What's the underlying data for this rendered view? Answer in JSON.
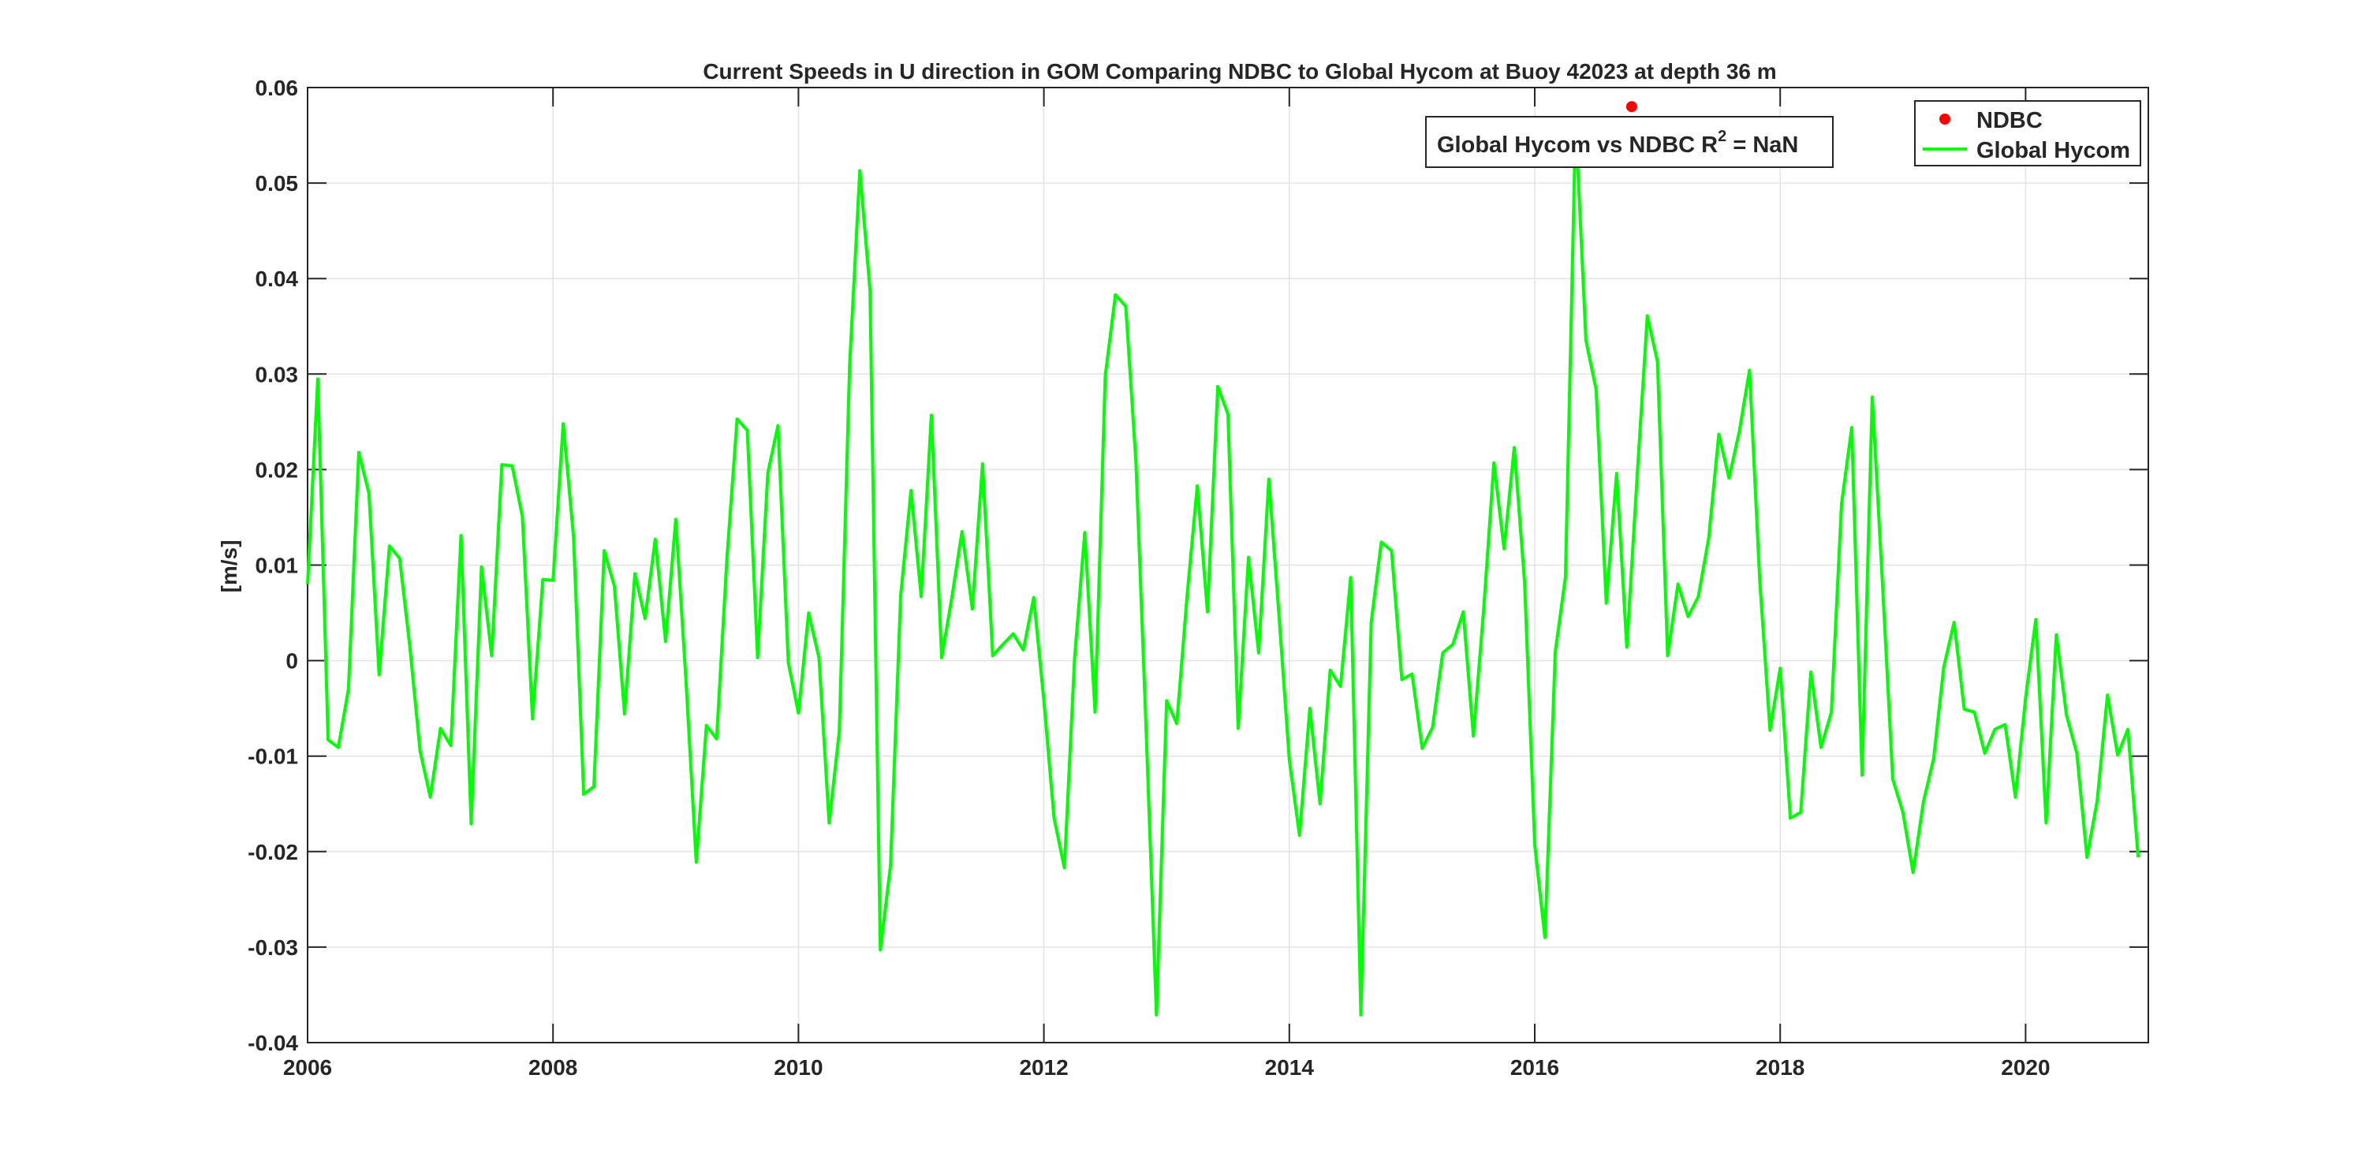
{
  "chart_data": {
    "type": "line",
    "title": "Current Speeds in U direction in GOM Comparing NDBC to Global Hycom at Buoy  42023  at depth  36 m",
    "xlabel": "",
    "ylabel": "[m/s]",
    "xlim": [
      2006,
      2021
    ],
    "ylim": [
      -0.04,
      0.06
    ],
    "x_ticks": [
      2006,
      2008,
      2010,
      2012,
      2014,
      2016,
      2018,
      2020
    ],
    "x_tick_labels": [
      "2006",
      "2008",
      "2010",
      "2012",
      "2014",
      "2016",
      "2018",
      "2020"
    ],
    "y_ticks": [
      -0.04,
      -0.03,
      -0.02,
      -0.01,
      0,
      0.01,
      0.02,
      0.03,
      0.04,
      0.05,
      0.06
    ],
    "y_tick_labels": [
      "-0.04",
      "-0.03",
      "-0.02",
      "-0.01",
      "0",
      "0.01",
      "0.02",
      "0.03",
      "0.04",
      "0.05",
      "0.06"
    ],
    "grid": true,
    "legend_position": "top-right",
    "annotation": {
      "prefix": "Global Hycom vs NDBC R",
      "superscript": "2",
      "suffix": " = NaN"
    },
    "series": [
      {
        "name": "NDBC",
        "style": "scatter",
        "color": "#ff0000",
        "x": [
          2016.79
        ],
        "y": [
          0.058
        ]
      },
      {
        "name": "Global Hycom",
        "style": "line",
        "color": "#00ff00",
        "x": [
          2006.0,
          2006.083,
          2006.167,
          2006.25,
          2006.333,
          2006.417,
          2006.5,
          2006.583,
          2006.667,
          2006.75,
          2006.833,
          2006.917,
          2007.0,
          2007.083,
          2007.167,
          2007.25,
          2007.333,
          2007.417,
          2007.5,
          2007.583,
          2007.667,
          2007.75,
          2007.833,
          2007.917,
          2008.0,
          2008.083,
          2008.167,
          2008.25,
          2008.333,
          2008.417,
          2008.5,
          2008.583,
          2008.667,
          2008.75,
          2008.833,
          2008.917,
          2009.0,
          2009.083,
          2009.167,
          2009.25,
          2009.333,
          2009.417,
          2009.5,
          2009.583,
          2009.667,
          2009.75,
          2009.833,
          2009.917,
          2010.0,
          2010.083,
          2010.167,
          2010.25,
          2010.333,
          2010.417,
          2010.5,
          2010.583,
          2010.667,
          2010.75,
          2010.833,
          2010.917,
          2011.0,
          2011.083,
          2011.167,
          2011.25,
          2011.333,
          2011.417,
          2011.5,
          2011.583,
          2011.667,
          2011.75,
          2011.833,
          2011.917,
          2012.0,
          2012.083,
          2012.167,
          2012.25,
          2012.333,
          2012.417,
          2012.5,
          2012.583,
          2012.667,
          2012.75,
          2012.833,
          2012.917,
          2013.0,
          2013.083,
          2013.167,
          2013.25,
          2013.333,
          2013.417,
          2013.5,
          2013.583,
          2013.667,
          2013.75,
          2013.833,
          2013.917,
          2014.0,
          2014.083,
          2014.167,
          2014.25,
          2014.333,
          2014.417,
          2014.5,
          2014.583,
          2014.667,
          2014.75,
          2014.833,
          2014.917,
          2015.0,
          2015.083,
          2015.167,
          2015.25,
          2015.333,
          2015.417,
          2015.5,
          2015.583,
          2015.667,
          2015.75,
          2015.833,
          2015.917,
          2016.0,
          2016.083,
          2016.167,
          2016.25,
          2016.333,
          2016.417,
          2016.5,
          2016.583,
          2016.667,
          2016.75,
          2016.833,
          2016.917,
          2017.0,
          2017.083,
          2017.167,
          2017.25,
          2017.333,
          2017.417,
          2017.5,
          2017.583,
          2017.667,
          2017.75,
          2017.833,
          2017.917,
          2018.0,
          2018.083,
          2018.167,
          2018.25,
          2018.333,
          2018.417,
          2018.5,
          2018.583,
          2018.667,
          2018.75,
          2018.833,
          2018.917,
          2019.0,
          2019.083,
          2019.167,
          2019.25,
          2019.333,
          2019.417,
          2019.5,
          2019.583,
          2019.667,
          2019.75,
          2019.833,
          2019.917,
          2020.0,
          2020.083,
          2020.167,
          2020.25,
          2020.333,
          2020.417,
          2020.5,
          2020.583,
          2020.667,
          2020.75,
          2020.833,
          2020.917
        ],
        "y": [
          0.008,
          0.0295,
          -0.0083,
          -0.0091,
          -0.003,
          0.0218,
          0.0175,
          -0.0015,
          0.012,
          0.0107,
          0.0015,
          -0.0095,
          -0.0143,
          -0.0071,
          -0.0089,
          0.0131,
          -0.0171,
          0.0098,
          0.0005,
          0.0205,
          0.0204,
          0.0151,
          -0.0061,
          0.0085,
          0.0084,
          0.0248,
          0.013,
          -0.014,
          -0.0132,
          0.0115,
          0.0078,
          -0.0056,
          0.0091,
          0.0044,
          0.0127,
          0.002,
          0.0148,
          -0.002,
          -0.0211,
          -0.0068,
          -0.0082,
          0.0107,
          0.0253,
          0.0241,
          0.0003,
          0.0196,
          0.0246,
          -0.0002,
          -0.0055,
          0.005,
          0.0003,
          -0.017,
          -0.0074,
          0.031,
          0.0513,
          0.0388,
          -0.0303,
          -0.0215,
          0.0068,
          0.0178,
          0.0067,
          0.0257,
          0.0003,
          0.0066,
          0.0135,
          0.0054,
          0.0206,
          0.0005,
          0.0017,
          0.0028,
          0.0011,
          0.0066,
          -0.0042,
          -0.0165,
          -0.0217,
          0.0002,
          0.0134,
          -0.0054,
          0.0298,
          0.0383,
          0.0371,
          0.0208,
          -0.0072,
          -0.0371,
          -0.0042,
          -0.0066,
          0.0068,
          0.0183,
          0.0051,
          0.0287,
          0.0258,
          -0.0071,
          0.0108,
          0.0008,
          0.019,
          0.0045,
          -0.0104,
          -0.0183,
          -0.005,
          -0.015,
          -0.001,
          -0.0027,
          0.0087,
          -0.0371,
          0.004,
          0.0124,
          0.0115,
          -0.002,
          -0.0014,
          -0.0092,
          -0.007,
          0.0008,
          0.0017,
          0.0051,
          -0.0079,
          0.0052,
          0.0207,
          0.0117,
          0.0223,
          0.0082,
          -0.0193,
          -0.029,
          0.0009,
          0.0087,
          0.0565,
          0.0335,
          0.0284,
          0.006,
          0.0196,
          0.0014,
          0.019,
          0.0361,
          0.0313,
          0.0005,
          0.008,
          0.0046,
          0.0067,
          0.0128,
          0.0237,
          0.0191,
          0.024,
          0.0304,
          0.0085,
          -0.0073,
          -0.0008,
          -0.0165,
          -0.0159,
          -0.0012,
          -0.0091,
          -0.0054,
          0.0164,
          0.0244,
          -0.012,
          0.0276,
          0.0082,
          -0.0124,
          -0.0159,
          -0.0222,
          -0.0148,
          -0.0103,
          -0.0007,
          0.004,
          -0.0051,
          -0.0054,
          -0.0097,
          -0.0072,
          -0.0067,
          -0.0143,
          -0.0039,
          0.0043,
          -0.017,
          0.0027,
          -0.0057,
          -0.0097,
          -0.0206,
          -0.0147,
          -0.0036,
          -0.0099,
          -0.0072,
          -0.0206
        ]
      }
    ]
  }
}
